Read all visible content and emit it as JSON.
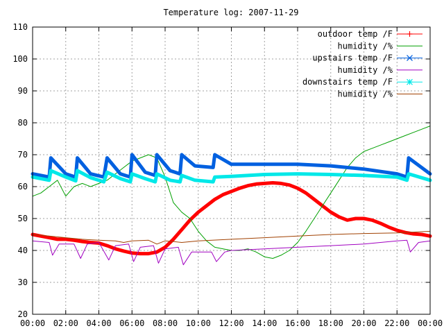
{
  "chart_data": {
    "type": "line",
    "title": "Temperature log: 2007-11-29",
    "xlabel": "",
    "ylabel": "",
    "xlim": [
      0,
      24
    ],
    "ylim": [
      20,
      110
    ],
    "grid": true,
    "legend_position": "top-right",
    "x_ticks": [
      0,
      2,
      4,
      6,
      8,
      10,
      12,
      14,
      16,
      18,
      20,
      22,
      24
    ],
    "x_tick_labels": [
      "00:00",
      "02:00",
      "04:00",
      "06:00",
      "08:00",
      "10:00",
      "12:00",
      "14:00",
      "16:00",
      "18:00",
      "20:00",
      "22:00",
      "00:00"
    ],
    "y_ticks": [
      20,
      30,
      40,
      50,
      60,
      70,
      80,
      90,
      100,
      110
    ],
    "y_tick_labels": [
      "20",
      "30",
      "40",
      "50",
      "60",
      "70",
      "80",
      "90",
      "100",
      "110"
    ],
    "series": [
      {
        "name": "outdoor temp /F",
        "color": "#ff0000",
        "marker": "plus",
        "stroke_width": 5,
        "x": [
          0,
          0.5,
          1,
          1.5,
          2,
          2.5,
          3,
          3.5,
          4,
          4.5,
          5,
          5.5,
          6,
          6.5,
          7,
          7.5,
          8,
          8.5,
          9,
          9.5,
          10,
          10.5,
          11,
          11.5,
          12,
          12.5,
          13,
          13.5,
          14,
          14.5,
          15,
          15.5,
          16,
          16.5,
          17,
          17.5,
          18,
          18.5,
          19,
          19.5,
          20,
          20.5,
          21,
          21.5,
          22,
          22.5,
          23,
          23.5,
          24
        ],
        "y": [
          45,
          44.5,
          44,
          43.5,
          43.5,
          43.2,
          42.8,
          42.5,
          42.3,
          41.5,
          40.5,
          39.8,
          39.2,
          39,
          39,
          39.5,
          41,
          43.5,
          46.5,
          49.5,
          52,
          54,
          56,
          57.5,
          58.5,
          59.5,
          60.3,
          60.8,
          61,
          61.2,
          61,
          60.5,
          59.5,
          58,
          56,
          54,
          52,
          50.5,
          49.5,
          50,
          50,
          49.5,
          48.5,
          47.3,
          46.3,
          45.6,
          45.2,
          45,
          44.5
        ]
      },
      {
        "name": "humidity /%",
        "color": "#00a000",
        "marker": "none",
        "stroke_width": 1,
        "x": [
          0,
          0.5,
          1,
          1.5,
          2,
          2.5,
          3,
          3.5,
          4,
          4.5,
          5,
          5.5,
          6,
          6.5,
          7,
          7.5,
          8,
          8.5,
          9,
          9.5,
          10,
          10.5,
          11,
          11.5,
          12,
          12.5,
          13,
          13.5,
          14,
          14.5,
          15,
          15.5,
          16,
          16.5,
          17,
          17.5,
          18,
          18.5,
          19,
          19.5,
          20,
          20.5,
          21,
          21.5,
          22,
          22.5,
          23,
          23.5,
          24
        ],
        "y": [
          57,
          58,
          60,
          62,
          57,
          60,
          61,
          60,
          61,
          62,
          64,
          66,
          68,
          69,
          70,
          69,
          63,
          55,
          52,
          50,
          46,
          43,
          41,
          40.5,
          40,
          40,
          40.5,
          39.5,
          38,
          37.5,
          38.5,
          40,
          42.5,
          46,
          50,
          54,
          58,
          62,
          66,
          69,
          71,
          72,
          73,
          74,
          75,
          76,
          77,
          78,
          79
        ]
      },
      {
        "name": "upstairs temp /F",
        "color": "#0060e0",
        "marker": "cross",
        "stroke_width": 5,
        "x": [
          0,
          1,
          1.1,
          2,
          2.6,
          2.7,
          3.5,
          4.3,
          4.5,
          5.3,
          5.9,
          6.0,
          6.8,
          7.4,
          7.5,
          8.3,
          8.9,
          9.0,
          9.8,
          10.9,
          11.0,
          12,
          14,
          16,
          18,
          20,
          22,
          22.6,
          22.7,
          24
        ],
        "y": [
          64,
          63,
          69,
          64,
          63,
          69,
          64,
          63,
          69,
          64,
          63,
          70,
          64.5,
          63.5,
          70,
          65,
          64,
          70,
          66.5,
          66,
          70,
          67,
          67,
          67,
          66.5,
          65.5,
          64,
          63,
          69,
          64
        ]
      },
      {
        "name": "humidity /%",
        "color": "#a000c0",
        "marker": "none",
        "stroke_width": 1,
        "x": [
          0,
          1,
          1.2,
          1.6,
          2.5,
          2.9,
          3.3,
          4,
          4.6,
          5,
          5.8,
          6.1,
          6.5,
          7.3,
          7.6,
          8,
          8.8,
          9.1,
          9.6,
          10.8,
          11.1,
          11.6,
          12,
          14,
          16,
          18,
          20,
          22,
          22.6,
          22.8,
          23.3,
          24
        ],
        "y": [
          43,
          42.5,
          38.5,
          42,
          42,
          37.5,
          42,
          42.5,
          37,
          41.5,
          42,
          36.5,
          41,
          41.5,
          36,
          40.5,
          41,
          35.5,
          39.5,
          39.5,
          36.5,
          39.5,
          40,
          40.5,
          41,
          41.5,
          42,
          43,
          43.2,
          39.5,
          42.5,
          43
        ]
      },
      {
        "name": "downstairs temp /F",
        "color": "#00e8e8",
        "marker": "star",
        "stroke_width": 5,
        "x": [
          0,
          1,
          1.1,
          2,
          2.6,
          2.7,
          3.5,
          4.3,
          4.5,
          5.3,
          5.9,
          6.0,
          6.8,
          7.4,
          7.5,
          8.3,
          8.9,
          9.0,
          9.8,
          10.9,
          11.0,
          12,
          14,
          16,
          18,
          20,
          22,
          22.6,
          22.7,
          24
        ],
        "y": [
          63,
          62,
          65,
          63,
          61.8,
          65,
          62.8,
          61.5,
          64.5,
          62.5,
          61.5,
          64,
          62.5,
          61.5,
          64,
          62,
          61.5,
          63.5,
          62,
          61.5,
          63,
          63.2,
          63.8,
          64,
          63.8,
          63.5,
          63,
          62,
          64,
          62
        ]
      },
      {
        "name": "humidity /%",
        "color": "#a04000",
        "marker": "none",
        "stroke_width": 1,
        "x": [
          0,
          1,
          2,
          3,
          4,
          5,
          5.5,
          6,
          7,
          7.5,
          8,
          8.5,
          9,
          10,
          12,
          14,
          16,
          18,
          20,
          22,
          24
        ],
        "y": [
          45,
          44.5,
          44,
          43.5,
          43.2,
          43,
          42.5,
          43,
          43.2,
          42,
          43,
          42.8,
          42.5,
          43,
          43.5,
          44,
          44.5,
          45,
          45.3,
          45.5,
          46
        ]
      }
    ]
  }
}
